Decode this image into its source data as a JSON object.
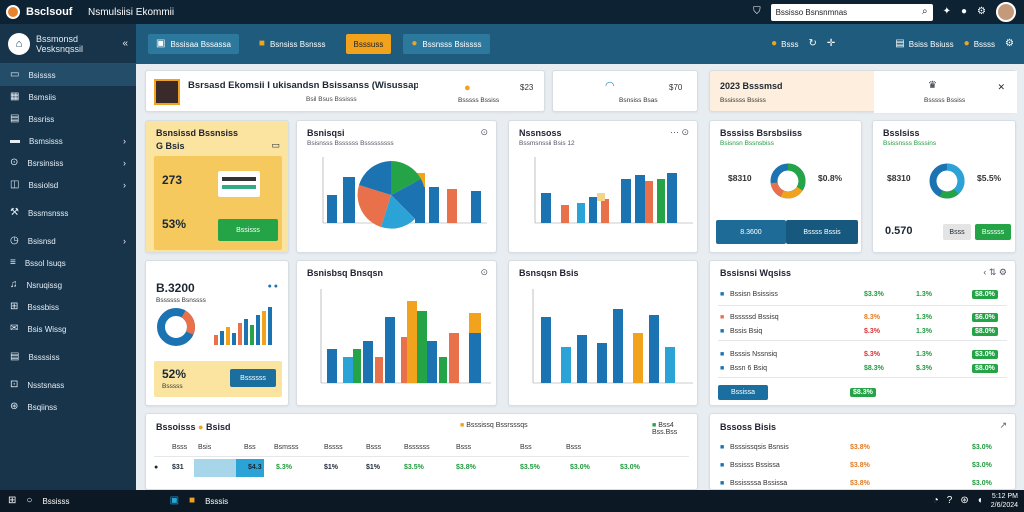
{
  "topbar": {
    "brand": "Bsclsouf",
    "title": "Nsmulsiisi Ekommii",
    "search_placeholder": "Bssisso Bsnsnmnas"
  },
  "sidebar": {
    "title_line1": "Bssmonsd",
    "title_line2": "Vesksnqssil",
    "items": [
      {
        "label": "Bsissss",
        "icon": "monitor-icon"
      },
      {
        "label": "Bsmsiis",
        "icon": "calendar-icon"
      },
      {
        "label": "Bssriss",
        "icon": "file-icon"
      },
      {
        "label": "Bsmsisss",
        "icon": "credit-card-icon"
      },
      {
        "label": "Bsrsinsiss",
        "icon": "settings-icon"
      },
      {
        "label": "Bssiolsd",
        "icon": "chart-icon"
      },
      {
        "label": "Bssmsnsss",
        "icon": "wrench-icon"
      },
      {
        "label": "Bsisnsd",
        "icon": "clock-icon"
      },
      {
        "label": "Bssol Isuqs",
        "icon": "list-icon"
      },
      {
        "label": "Nsruqissg",
        "icon": "bell-icon"
      },
      {
        "label": "Bsssbiss",
        "icon": "grid-icon"
      },
      {
        "label": "Bsis Wissg",
        "icon": "mail-icon"
      },
      {
        "label": "Bssssiss",
        "icon": "document-icon"
      },
      {
        "label": "Nsstsnass",
        "icon": "users-icon"
      },
      {
        "label": "Bsqiinss",
        "icon": "help-icon"
      }
    ]
  },
  "toolbar": {
    "btn1": "Bssisaa Bssassa",
    "btn2": "Bsnsiss Bsnsss",
    "btn3": "Bsssuss",
    "btn4": "Bssnsss Bsissss",
    "right1": "Bsss",
    "right2": "Bsiss Bsiuss",
    "right3": "Bssss"
  },
  "profile": {
    "name": "Bsrsasd Ekomsii I ukisandsn Bsissanss (Wisussap)",
    "sub": "Bsil Bsus Bssisss",
    "val1": "$23",
    "val1_sub": "Bsssss Bssiss",
    "val2": "$70",
    "val2_sub": "Bsnsiss Bsas",
    "promo_title": "2023 Bsssmsd",
    "promo_sub": "Bssissss Bssiss",
    "promo_sub2": "Bsssss Bssiss"
  },
  "kpi_yellow": {
    "title": "Bsnsissd Bssnsiss",
    "sub": "G Bsis",
    "v1": "273",
    "v2": "53%",
    "btn": "Bssisss"
  },
  "card_pie": {
    "title": "Bsnisqsi",
    "sub": "Bsisnsss Bssssss Bsssssssss"
  },
  "card_bar1": {
    "title": "Nssnsoss",
    "sub": "Bssmsnssii Bsis 12"
  },
  "card_donut1": {
    "title": "Bsssiss Bsrsbsiiss",
    "sub": "Bsisnsn Bssnsbiss",
    "v1": "$8310",
    "v2": "$0.8%",
    "btn_left": "8.3600",
    "btn_right": "Bssss Bssis"
  },
  "card_donut2": {
    "title": "Bsslsiss",
    "sub": "Bsissnsss Bsssins",
    "v1": "$8310",
    "v2": "$5.5%",
    "v3": "0.570",
    "btn1": "Bsss",
    "btn2": "Bsssss"
  },
  "kpi_white": {
    "big": "B.3200",
    "sub": "Bssssss Bsnssss",
    "v2": "52%",
    "v2_sub": "Bsssss",
    "btn": "Bssssss"
  },
  "card_bar2": {
    "title": "Bsnisbsq Bnsqsn"
  },
  "card_bar3": {
    "title": "Bsnsqsn Bsis"
  },
  "card_list": {
    "title": "Bssisnsi Wqsiss",
    "rows": [
      {
        "label": "Bssisn Bsississ",
        "a": "$3.3%",
        "b": "1.3%",
        "c": "$8.0%"
      },
      {
        "label": "Bsssssd Bssisq",
        "a": "8.3%",
        "b": "1.3%",
        "c": "$6.0%"
      },
      {
        "label": "Bssis Bsiq",
        "a": "$.3%",
        "b": "1.3%",
        "c": "$8.0%"
      },
      {
        "label": "Bsssis Nssnsiq",
        "a": "$.3%",
        "b": "1.3%",
        "c": "$3.0%"
      },
      {
        "label": "Bssn 6 Bsiq",
        "a": "$8.3%",
        "b": "$.3%",
        "c": "$8.0%"
      }
    ],
    "btn": "Bssissa",
    "footer_val": "$8.3%"
  },
  "card_table": {
    "title": "Bssoisss",
    "title2": "Bsisd",
    "legend1": "Bsssissq Bssrsssqs",
    "legend2": "Bss4 Bss.Bss",
    "headers": [
      "Bsss",
      "Bsis",
      "Bss",
      "Bsmsss",
      "Bssss",
      "Bsss",
      "Bssssss",
      "Bsss",
      "Bss",
      "Bsss"
    ],
    "row": [
      "$31",
      "$4.3",
      "$.3%",
      "$1%",
      "$1%",
      "$3.5%",
      "$3.8%",
      "$3.5%",
      "$3.0%",
      "$3.0%"
    ]
  },
  "card_status": {
    "title": "Bssoss Bisis",
    "rows": [
      {
        "label": "Bsssissqsis Bsnsis",
        "a": "$3.8%",
        "b": "$3.0%"
      },
      {
        "label": "Bssisss Bssissa",
        "a": "$3.8%",
        "b": "$3.0%"
      },
      {
        "label": "Bssissssa Bssissa",
        "a": "$3.8%",
        "b": "$3.0%"
      }
    ]
  },
  "taskbar": {
    "search": "Bssisss",
    "app": "Bsssis",
    "time": "5:12 PM",
    "date": "2/6/2024"
  }
}
